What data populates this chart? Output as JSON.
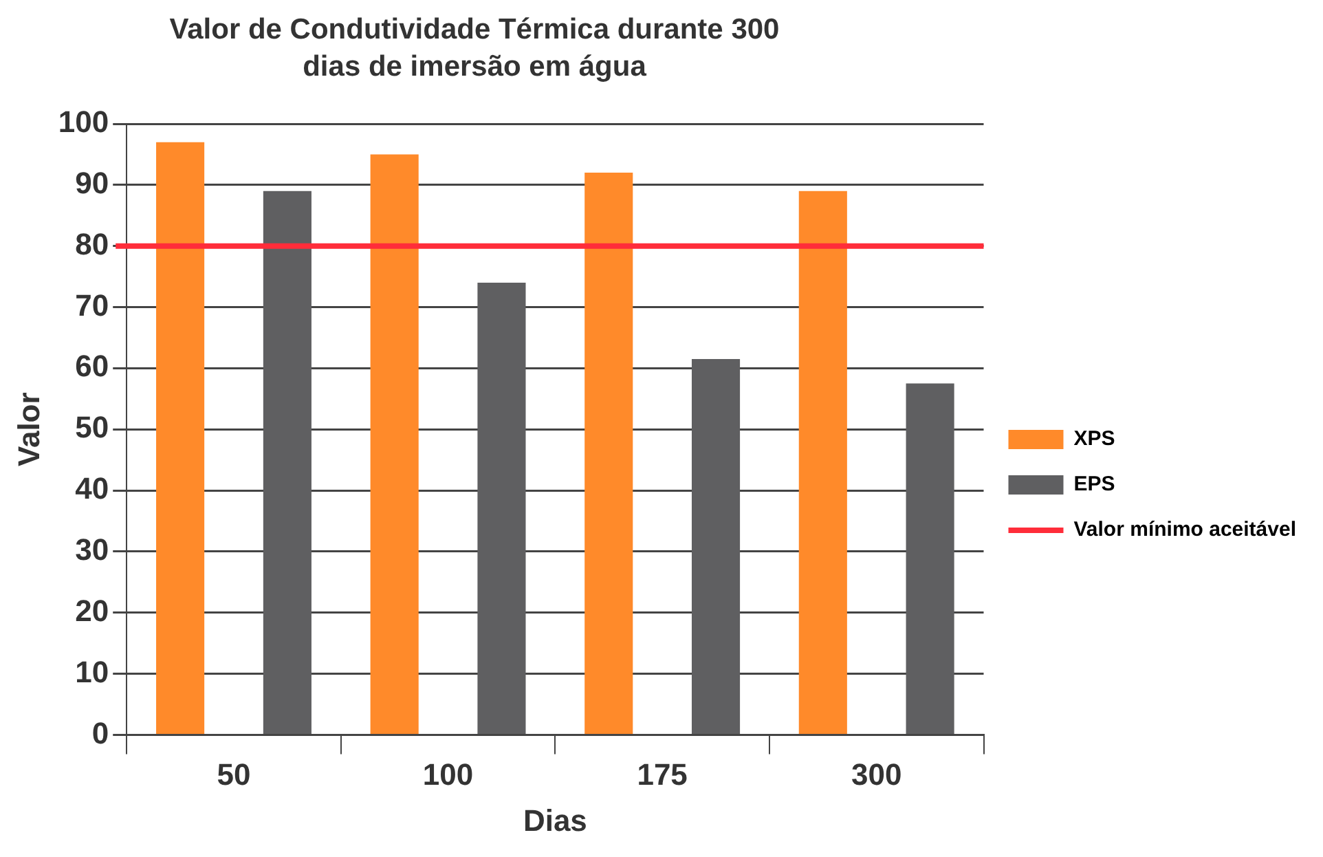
{
  "chart_data": {
    "type": "bar",
    "title": "Valor de Condutividade Térmica durante 300 dias de imersão em água",
    "xlabel": "Dias",
    "ylabel": "Valor",
    "categories": [
      "50",
      "100",
      "175",
      "300"
    ],
    "series": [
      {
        "name": "XPS",
        "color": "#ff8a2a",
        "values": [
          97,
          95,
          92,
          89
        ]
      },
      {
        "name": "EPS",
        "color": "#5f5f61",
        "values": [
          89,
          74,
          61.5,
          57.5
        ]
      }
    ],
    "ylim": [
      0,
      100
    ],
    "yticks": [
      0,
      10,
      20,
      30,
      40,
      50,
      60,
      70,
      80,
      90,
      100
    ],
    "grid": "y",
    "legend": "right",
    "ref_lines": [
      {
        "axis": "y",
        "value": 80,
        "label": "Valor mínimo aceitável",
        "color": "#ff2d3a"
      }
    ]
  }
}
